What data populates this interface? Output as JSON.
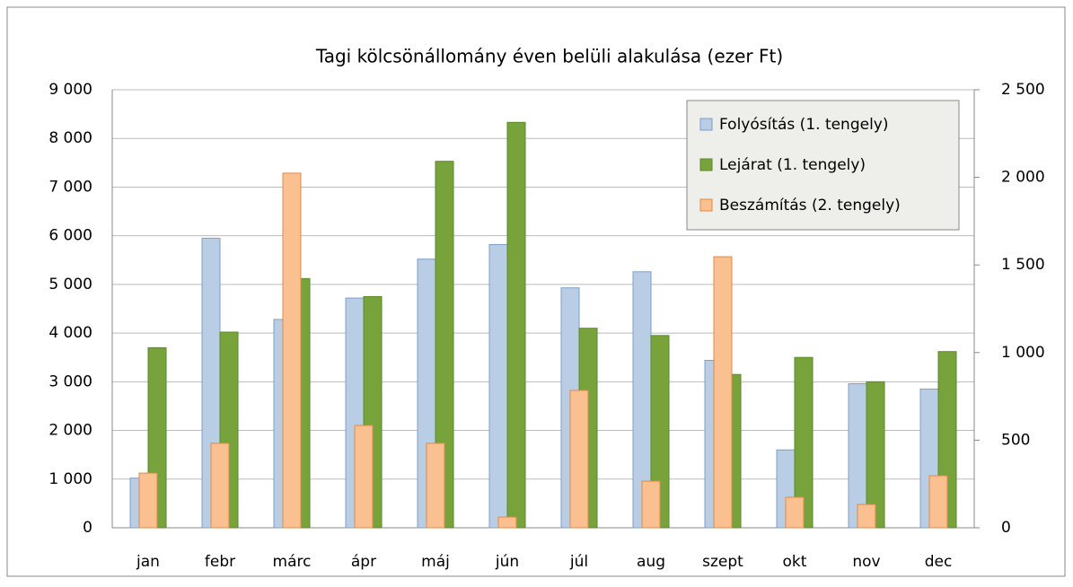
{
  "chart_data": {
    "type": "bar",
    "title": "Tagi kölcsönállomány éven belüli alakulása  (ezer Ft)",
    "categories": [
      "jan",
      "febr",
      "márc",
      "ápr",
      "máj",
      "jún",
      "júl",
      "aug",
      "szept",
      "okt",
      "nov",
      "dec"
    ],
    "series": [
      {
        "name": "Folyósítás (1. tengely)",
        "color": "#b9cde5",
        "values": [
          1020,
          5950,
          4280,
          4720,
          5520,
          5820,
          4930,
          5260,
          3440,
          1600,
          2960,
          2850
        ]
      },
      {
        "name": "Lejárat (1. tengely)",
        "color": "#77a33a",
        "values": [
          3700,
          4020,
          5120,
          4750,
          7530,
          8330,
          4100,
          3950,
          3150,
          3500,
          3000,
          3620
        ]
      },
      {
        "name": "Beszámítás (2. tengely)",
        "color": "#fac090",
        "axis": "y2",
        "values": [
          312,
          482,
          2024,
          584,
          482,
          61,
          784,
          266,
          1547,
          174,
          133,
          297
        ]
      }
    ],
    "ylim": [
      0,
      9000
    ],
    "yticks": [
      0,
      {
        "value": 1000,
        "label": "1 000"
      },
      {
        "value": 2000,
        "label": "2 000"
      },
      {
        "value": 3000,
        "label": "3 000"
      },
      {
        "value": 4000,
        "label": "4 000"
      },
      {
        "value": 5000,
        "label": "5 000"
      },
      {
        "value": 6000,
        "label": "6 000"
      },
      {
        "value": 7000,
        "label": "7 000"
      },
      {
        "value": 8000,
        "label": "8 000"
      },
      {
        "value": 9000,
        "label": "9 000"
      }
    ],
    "y2lim": [
      0,
      2500
    ],
    "y2ticks": [
      0,
      500,
      {
        "value": 1000,
        "label": "1 000"
      },
      {
        "value": 1500,
        "label": "1 500"
      },
      {
        "value": 2000,
        "label": "2 000"
      },
      {
        "value": 2500,
        "label": "2 500"
      }
    ],
    "grid": true,
    "legend": "top-right"
  }
}
